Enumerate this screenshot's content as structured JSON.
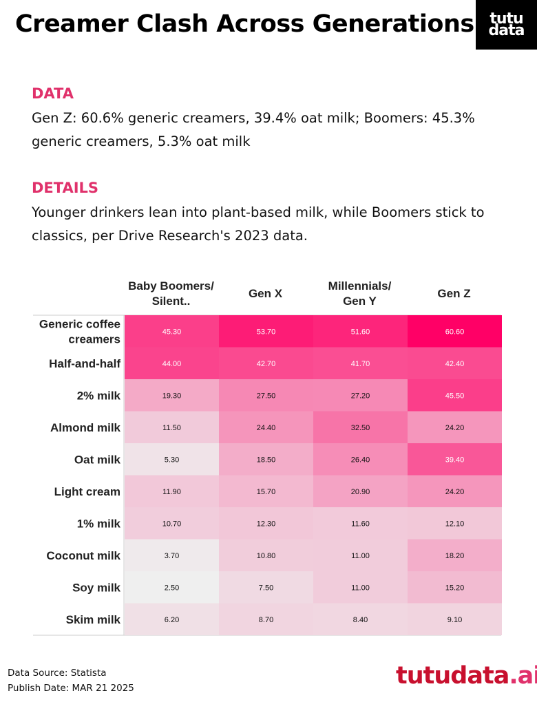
{
  "header": {
    "title": "Creamer Clash Across Generations",
    "logo_line1": "tutu",
    "logo_line2": "data"
  },
  "data_section": {
    "heading": "DATA",
    "text": "Gen Z: 60.6% generic creamers, 39.4% oat milk; Boomers: 45.3% generic creamers, 5.3% oat milk"
  },
  "details_section": {
    "heading": "DETAILS",
    "text": "Younger drinkers lean into plant-based milk, while Boomers stick to classics, per Drive Research's 2023 data."
  },
  "chart_data": {
    "type": "heatmap",
    "columns": [
      "Baby Boomers/ Silent..",
      "Gen X",
      "Millennials/Gen Y",
      "Gen Z"
    ],
    "rows": [
      "Generic coffee creamers",
      "Half-and-half",
      "2% milk",
      "Almond milk",
      "Oat milk",
      "Light cream",
      "1% milk",
      "Coconut milk",
      "Soy milk",
      "Skim milk"
    ],
    "values": [
      [
        45.3,
        53.7,
        51.6,
        60.6
      ],
      [
        44.0,
        42.7,
        41.7,
        42.4
      ],
      [
        19.3,
        27.5,
        27.2,
        45.5
      ],
      [
        11.5,
        24.4,
        32.5,
        24.2
      ],
      [
        5.3,
        18.5,
        26.4,
        39.4
      ],
      [
        11.9,
        15.7,
        20.9,
        24.2
      ],
      [
        10.7,
        12.3,
        11.6,
        12.1
      ],
      [
        3.7,
        10.8,
        11.0,
        18.2
      ],
      [
        2.5,
        7.5,
        11.0,
        15.2
      ],
      [
        6.2,
        8.7,
        8.4,
        9.1
      ]
    ],
    "color_low": "#efefef",
    "color_high": "#ff0066",
    "value_format": "2 decimals"
  },
  "footer": {
    "source": "Data Source: Statista",
    "publish_date": "Publish Date: MAR 21 2025",
    "brand_main": "tutudata",
    "brand_suffix": ".ai",
    "brand_suffix_color": "#e0316b",
    "brand_main_color": "#c8102e"
  }
}
